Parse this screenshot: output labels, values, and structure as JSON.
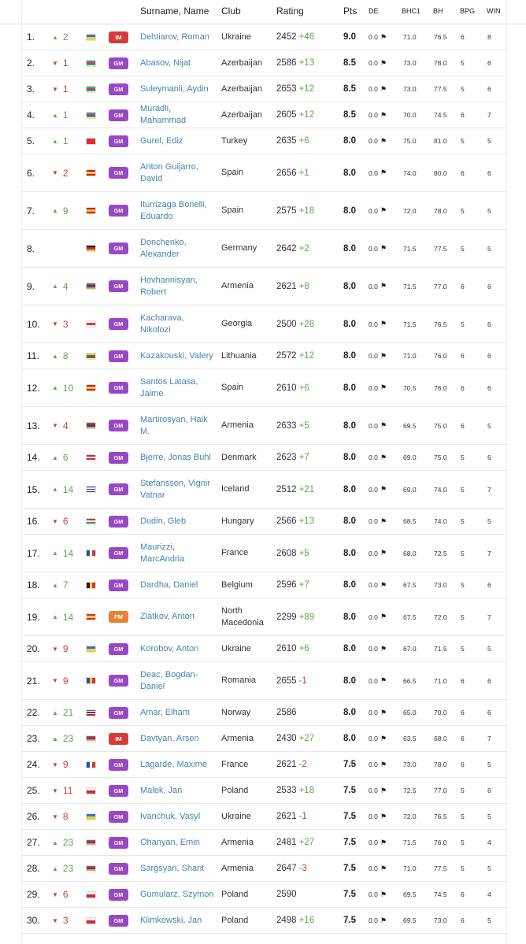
{
  "header": {
    "name": "Surname, Name",
    "club": "Club",
    "rating": "Rating",
    "pts": "Pts",
    "de": "DE",
    "bhc1": "BHC1",
    "bh": "BH",
    "bpg": "BPG",
    "win": "WIN"
  },
  "flags": {
    "ukraine": {
      "dir": "v",
      "colors": [
        "#3a6fd0",
        "#f2cf2f"
      ]
    },
    "azerbaijan": {
      "dir": "v",
      "colors": [
        "#2f9fd6",
        "#d93b3b",
        "#3aa33f"
      ]
    },
    "turkey": {
      "dir": "v",
      "colors": [
        "#d7332c"
      ]
    },
    "spain": {
      "dir": "v",
      "colors": [
        "#c6202a",
        "#f3c431",
        "#c6202a"
      ]
    },
    "germany": {
      "dir": "v",
      "colors": [
        "#1b1b1b",
        "#d72b2b",
        "#f4c531"
      ]
    },
    "armenia": {
      "dir": "v",
      "colors": [
        "#d53b32",
        "#2b48a0",
        "#f0a430"
      ]
    },
    "georgia": {
      "dir": "v",
      "colors": [
        "#f4f4f4",
        "#d63b3b",
        "#f4f4f4"
      ]
    },
    "lithuania": {
      "dir": "v",
      "colors": [
        "#f3c32d",
        "#2f8a3c",
        "#c6312c"
      ]
    },
    "denmark": {
      "dir": "v",
      "colors": [
        "#c8283a",
        "#f4f4f4",
        "#c8283a"
      ]
    },
    "iceland": {
      "dir": "v",
      "colors": [
        "#2a4fa3",
        "#e8e8e8",
        "#c8283a",
        "#e8e8e8",
        "#2a4fa3"
      ]
    },
    "hungary": {
      "dir": "v",
      "colors": [
        "#c53b33",
        "#f4f4f4",
        "#3b8a45"
      ]
    },
    "france": {
      "dir": "h",
      "colors": [
        "#2a4fa3",
        "#f4f4f4",
        "#d23a33"
      ]
    },
    "belgium": {
      "dir": "h",
      "colors": [
        "#1b1b1b",
        "#f3ce32",
        "#d23a33"
      ]
    },
    "north_macedonia": {
      "dir": "v",
      "colors": [
        "#d82c2c",
        "#f5d130",
        "#d82c2c"
      ]
    },
    "romania": {
      "dir": "h",
      "colors": [
        "#2a4fa3",
        "#f3ce32",
        "#d23a33"
      ]
    },
    "norway": {
      "dir": "v",
      "colors": [
        "#c5283a",
        "#f4f4f4",
        "#2c3f8f",
        "#f4f4f4",
        "#c5283a"
      ]
    },
    "poland": {
      "dir": "v",
      "colors": [
        "#f4f4f4",
        "#d6283a"
      ]
    }
  },
  "players": [
    {
      "rank": "1.",
      "chg_dir": "up",
      "chg": "2",
      "flag": "ukraine",
      "title": "IM",
      "name": "Dehtiarov, Roman",
      "club": "Ukraine",
      "rating": "2452",
      "rdelta": "+46",
      "pts": "9.0",
      "de": "0.0",
      "bhc1": "71.0",
      "bh": "76.5",
      "bpg": "6",
      "win": "8"
    },
    {
      "rank": "2.",
      "chg_dir": "down",
      "chg": "1",
      "flag": "azerbaijan",
      "title": "GM",
      "name": "Abasov, Nijat",
      "club": "Azerbaijan",
      "rating": "2586",
      "rdelta": "+13",
      "pts": "8.5",
      "de": "0.0",
      "bhc1": "73.0",
      "bh": "78.0",
      "bpg": "5",
      "win": "6"
    },
    {
      "rank": "3.",
      "chg_dir": "down",
      "chg": "1",
      "flag": "azerbaijan",
      "title": "GM",
      "name": "Suleymanli, Aydin",
      "club": "Azerbaijan",
      "rating": "2653",
      "rdelta": "+12",
      "pts": "8.5",
      "de": "0.0",
      "bhc1": "73.0",
      "bh": "77.5",
      "bpg": "5",
      "win": "6"
    },
    {
      "rank": "4.",
      "chg_dir": "up",
      "chg": "1",
      "flag": "azerbaijan",
      "title": "GM",
      "name": "Muradli, Mahammad",
      "club": "Azerbaijan",
      "rating": "2605",
      "rdelta": "+12",
      "pts": "8.5",
      "de": "0.0",
      "bhc1": "70.0",
      "bh": "74.5",
      "bpg": "6",
      "win": "7"
    },
    {
      "rank": "5.",
      "chg_dir": "up",
      "chg": "1",
      "flag": "turkey",
      "title": "GM",
      "name": "Gurel, Ediz",
      "club": "Turkey",
      "rating": "2635",
      "rdelta": "+6",
      "pts": "8.0",
      "de": "0.0",
      "bhc1": "75.0",
      "bh": "81.0",
      "bpg": "5",
      "win": "5"
    },
    {
      "rank": "6.",
      "chg_dir": "down",
      "chg": "2",
      "flag": "spain",
      "title": "GM",
      "name": "Anton Guijarro, David",
      "club": "Spain",
      "rating": "2656",
      "rdelta": "+1",
      "pts": "8.0",
      "de": "0.0",
      "bhc1": "74.0",
      "bh": "80.0",
      "bpg": "6",
      "win": "6"
    },
    {
      "rank": "7.",
      "chg_dir": "up",
      "chg": "9",
      "flag": "spain",
      "title": "GM",
      "name": "Iturrizaga Bonelli, Eduardo",
      "club": "Spain",
      "rating": "2575",
      "rdelta": "+18",
      "pts": "8.0",
      "de": "0.0",
      "bhc1": "72.0",
      "bh": "78.0",
      "bpg": "5",
      "win": "5"
    },
    {
      "rank": "8.",
      "chg_dir": "none",
      "chg": "",
      "flag": "germany",
      "title": "GM",
      "name": "Donchenko, Alexander",
      "club": "Germany",
      "rating": "2642",
      "rdelta": "+2",
      "pts": "8.0",
      "de": "0.0",
      "bhc1": "71.5",
      "bh": "77.5",
      "bpg": "5",
      "win": "5"
    },
    {
      "rank": "9.",
      "chg_dir": "up",
      "chg": "4",
      "flag": "armenia",
      "title": "GM",
      "name": "Hovhannisyan, Robert",
      "club": "Armenia",
      "rating": "2621",
      "rdelta": "+8",
      "pts": "8.0",
      "de": "0.0",
      "bhc1": "71.5",
      "bh": "77.0",
      "bpg": "6",
      "win": "6"
    },
    {
      "rank": "10.",
      "chg_dir": "down",
      "chg": "3",
      "flag": "georgia",
      "title": "GM",
      "name": "Kacharava, Nikolozi",
      "club": "Georgia",
      "rating": "2500",
      "rdelta": "+28",
      "pts": "8.0",
      "de": "0.0",
      "bhc1": "71.5",
      "bh": "76.5",
      "bpg": "5",
      "win": "6"
    },
    {
      "rank": "11.",
      "chg_dir": "up",
      "chg": "8",
      "flag": "lithuania",
      "title": "GM",
      "name": "Kazakouski, Valery",
      "club": "Lithuania",
      "rating": "2572",
      "rdelta": "+12",
      "pts": "8.0",
      "de": "0.0",
      "bhc1": "71.0",
      "bh": "76.0",
      "bpg": "6",
      "win": "6"
    },
    {
      "rank": "12.",
      "chg_dir": "up",
      "chg": "10",
      "flag": "spain",
      "title": "GM",
      "name": "Santos Latasa, Jaime",
      "club": "Spain",
      "rating": "2610",
      "rdelta": "+6",
      "pts": "8.0",
      "de": "0.0",
      "bhc1": "70.5",
      "bh": "76.0",
      "bpg": "6",
      "win": "6"
    },
    {
      "rank": "13.",
      "chg_dir": "down",
      "chg": "4",
      "flag": "armenia",
      "title": "GM",
      "name": "Martirosyan, Haik M.",
      "club": "Armenia",
      "rating": "2633",
      "rdelta": "+5",
      "pts": "8.0",
      "de": "0.0",
      "bhc1": "69.5",
      "bh": "75.0",
      "bpg": "6",
      "win": "5"
    },
    {
      "rank": "14.",
      "chg_dir": "up",
      "chg": "6",
      "flag": "denmark",
      "title": "GM",
      "name": "Bjerre, Jonas Buhl",
      "club": "Denmark",
      "rating": "2623",
      "rdelta": "+7",
      "pts": "8.0",
      "de": "0.0",
      "bhc1": "69.0",
      "bh": "75.0",
      "bpg": "5",
      "win": "6"
    },
    {
      "rank": "15.",
      "chg_dir": "up",
      "chg": "14",
      "flag": "iceland",
      "title": "GM",
      "name": "Stefansson, Vignir Vatnar",
      "club": "Iceland",
      "rating": "2512",
      "rdelta": "+21",
      "pts": "8.0",
      "de": "0.0",
      "bhc1": "69.0",
      "bh": "74.0",
      "bpg": "5",
      "win": "7"
    },
    {
      "rank": "16.",
      "chg_dir": "down",
      "chg": "6",
      "flag": "hungary",
      "title": "GM",
      "name": "Dudin, Gleb",
      "club": "Hungary",
      "rating": "2566",
      "rdelta": "+13",
      "pts": "8.0",
      "de": "0.0",
      "bhc1": "68.5",
      "bh": "74.0",
      "bpg": "5",
      "win": "5"
    },
    {
      "rank": "17.",
      "chg_dir": "up",
      "chg": "14",
      "flag": "france",
      "title": "GM",
      "name": "Maurizzi, MarcAndria",
      "club": "France",
      "rating": "2608",
      "rdelta": "+5",
      "pts": "8.0",
      "de": "0.0",
      "bhc1": "68.0",
      "bh": "72.5",
      "bpg": "5",
      "win": "7"
    },
    {
      "rank": "18.",
      "chg_dir": "up",
      "chg": "7",
      "flag": "belgium",
      "title": "GM",
      "name": "Dardha, Daniel",
      "club": "Belgium",
      "rating": "2596",
      "rdelta": "+7",
      "pts": "8.0",
      "de": "0.0",
      "bhc1": "67.5",
      "bh": "73.0",
      "bpg": "5",
      "win": "6"
    },
    {
      "rank": "19.",
      "chg_dir": "up",
      "chg": "14",
      "flag": "north_macedonia",
      "title": "FM",
      "name": "Zlatkov, Anton",
      "club": "North Macedonia",
      "rating": "2299",
      "rdelta": "+89",
      "pts": "8.0",
      "de": "0.0",
      "bhc1": "67.5",
      "bh": "72.0",
      "bpg": "5",
      "win": "7"
    },
    {
      "rank": "20.",
      "chg_dir": "down",
      "chg": "9",
      "flag": "ukraine",
      "title": "GM",
      "name": "Korobov, Anton",
      "club": "Ukraine",
      "rating": "2610",
      "rdelta": "+6",
      "pts": "8.0",
      "de": "0.0",
      "bhc1": "67.0",
      "bh": "71.5",
      "bpg": "5",
      "win": "5"
    },
    {
      "rank": "21.",
      "chg_dir": "down",
      "chg": "9",
      "flag": "romania",
      "title": "GM",
      "name": "Deac, Bogdan-Daniel",
      "club": "Romania",
      "rating": "2655",
      "rdelta": "-1",
      "pts": "8.0",
      "de": "0.0",
      "bhc1": "66.5",
      "bh": "71.0",
      "bpg": "6",
      "win": "6"
    },
    {
      "rank": "22.",
      "chg_dir": "up",
      "chg": "21",
      "flag": "norway",
      "title": "GM",
      "name": "Amar, Elham",
      "club": "Norway",
      "rating": "2586",
      "rdelta": "",
      "pts": "8.0",
      "de": "0.0",
      "bhc1": "65.0",
      "bh": "70.0",
      "bpg": "6",
      "win": "6"
    },
    {
      "rank": "23.",
      "chg_dir": "up",
      "chg": "23",
      "flag": "armenia",
      "title": "IM",
      "name": "Davtyan, Arsen",
      "club": "Armenia",
      "rating": "2430",
      "rdelta": "+27",
      "pts": "8.0",
      "de": "0.0",
      "bhc1": "63.5",
      "bh": "68.0",
      "bpg": "6",
      "win": "7"
    },
    {
      "rank": "24.",
      "chg_dir": "down",
      "chg": "9",
      "flag": "france",
      "title": "GM",
      "name": "Lagarde, Maxime",
      "club": "France",
      "rating": "2621",
      "rdelta": "-2",
      "pts": "7.5",
      "de": "0.0",
      "bhc1": "73.0",
      "bh": "78.0",
      "bpg": "6",
      "win": "5"
    },
    {
      "rank": "25.",
      "chg_dir": "down",
      "chg": "11",
      "flag": "poland",
      "title": "GM",
      "name": "Malek, Jan",
      "club": "Poland",
      "rating": "2533",
      "rdelta": "+18",
      "pts": "7.5",
      "de": "0.0",
      "bhc1": "72.5",
      "bh": "77.0",
      "bpg": "5",
      "win": "6"
    },
    {
      "rank": "26.",
      "chg_dir": "down",
      "chg": "8",
      "flag": "ukraine",
      "title": "GM",
      "name": "Ivanchuk, Vasyl",
      "club": "Ukraine",
      "rating": "2621",
      "rdelta": "-1",
      "pts": "7.5",
      "de": "0.0",
      "bhc1": "72.0",
      "bh": "76.5",
      "bpg": "5",
      "win": "5"
    },
    {
      "rank": "27.",
      "chg_dir": "up",
      "chg": "23",
      "flag": "armenia",
      "title": "GM",
      "name": "Ohanyan, Emin",
      "club": "Armenia",
      "rating": "2481",
      "rdelta": "+27",
      "pts": "7.5",
      "de": "0.0",
      "bhc1": "71.5",
      "bh": "76.0",
      "bpg": "5",
      "win": "4"
    },
    {
      "rank": "28.",
      "chg_dir": "up",
      "chg": "23",
      "flag": "armenia",
      "title": "GM",
      "name": "Sargsyan, Shant",
      "club": "Armenia",
      "rating": "2647",
      "rdelta": "-3",
      "pts": "7.5",
      "de": "0.0",
      "bhc1": "71.0",
      "bh": "77.5",
      "bpg": "5",
      "win": "5"
    },
    {
      "rank": "29.",
      "chg_dir": "down",
      "chg": "6",
      "flag": "poland",
      "title": "GM",
      "name": "Gumularz, Szymon",
      "club": "Poland",
      "rating": "2590",
      "rdelta": "",
      "pts": "7.5",
      "de": "0.0",
      "bhc1": "69.5",
      "bh": "74.5",
      "bpg": "6",
      "win": "4"
    },
    {
      "rank": "30.",
      "chg_dir": "down",
      "chg": "3",
      "flag": "poland",
      "title": "GM",
      "name": "Klimkowski, Jan",
      "club": "Poland",
      "rating": "2498",
      "rdelta": "+16",
      "pts": "7.5",
      "de": "0.0",
      "bhc1": "69.5",
      "bh": "73.0",
      "bpg": "6",
      "win": "5"
    }
  ]
}
